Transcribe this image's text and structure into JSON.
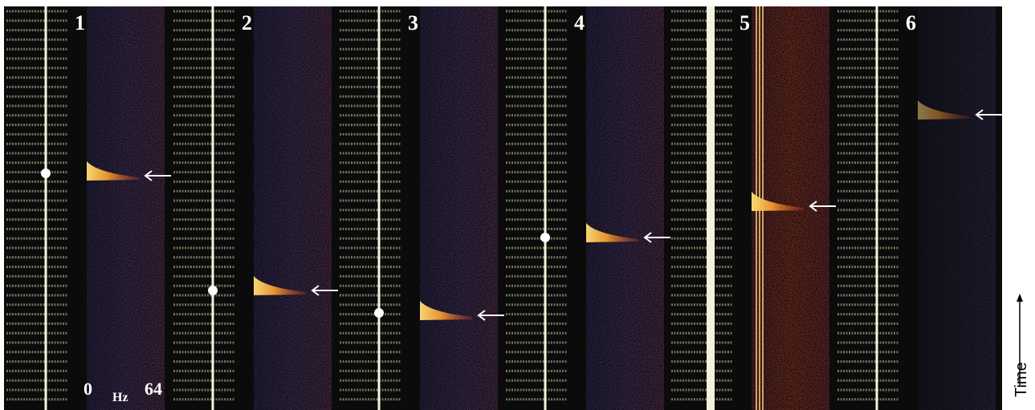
{
  "panels": [
    {
      "label": "1"
    },
    {
      "label": "2"
    },
    {
      "label": "3"
    },
    {
      "label": "4"
    },
    {
      "label": "5"
    },
    {
      "label": "6"
    }
  ],
  "frequency_axis": {
    "min": "0",
    "unit": "Hz",
    "max": "64"
  },
  "time_label": "Time"
}
